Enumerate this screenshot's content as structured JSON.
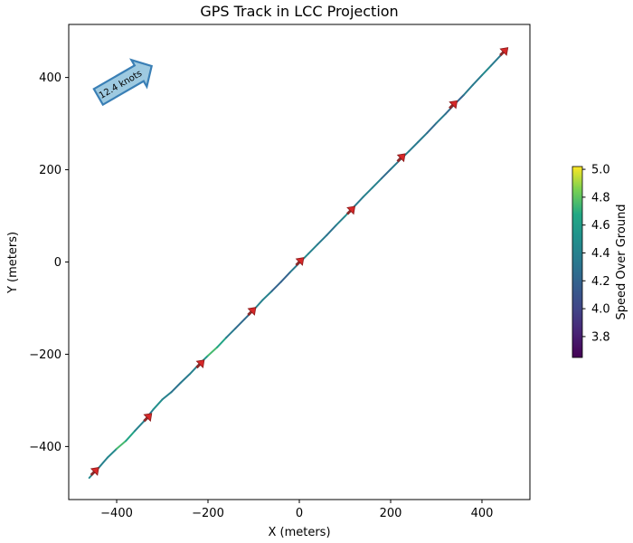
{
  "chart_data": {
    "type": "line",
    "title": "GPS Track in LCC Projection",
    "xlabel": "X (meters)",
    "ylabel": "Y (meters)",
    "xlim": [
      -505,
      505
    ],
    "ylim": [
      -515,
      515
    ],
    "xticks": [
      -400,
      -200,
      0,
      200,
      400
    ],
    "yticks": [
      -400,
      -200,
      0,
      200,
      400
    ],
    "grid": false,
    "line_colormap": "viridis",
    "series": [
      {
        "x": [
          -460,
          -440,
          -420,
          -400,
          -380,
          -360,
          -340,
          -320,
          -300,
          -280,
          -260,
          -240,
          -220,
          -200,
          -180,
          -160,
          -140,
          -120,
          -100,
          -80,
          -60,
          -40,
          -20,
          0,
          20,
          40,
          60,
          80,
          100,
          120,
          140,
          160,
          180,
          200,
          220,
          240,
          260,
          280,
          300,
          320,
          340,
          360,
          380,
          400,
          420,
          440,
          455
        ],
        "y": [
          -468,
          -447,
          -424,
          -405,
          -388,
          -366,
          -345,
          -320,
          -298,
          -282,
          -262,
          -243,
          -222,
          -203,
          -185,
          -164,
          -144,
          -124,
          -104,
          -82,
          -63,
          -43,
          -22,
          -2,
          18,
          38,
          58,
          79,
          99,
          120,
          141,
          161,
          181,
          201,
          221,
          240,
          260,
          280,
          301,
          321,
          342,
          362,
          384,
          405,
          426,
          447,
          462
        ],
        "speed": [
          4.3,
          4.6,
          4.2,
          4.7,
          4.8,
          4.5,
          4.3,
          4.4,
          4.6,
          4.2,
          4.4,
          4.3,
          4.5,
          4.6,
          4.9,
          4.4,
          4.3,
          4.2,
          4.3,
          4.5,
          4.3,
          4.1,
          4.3,
          4.4,
          4.5,
          4.3,
          4.4,
          4.2,
          4.6,
          4.4,
          4.3,
          4.5,
          4.3,
          4.2,
          4.5,
          4.3,
          4.4,
          4.3,
          4.2,
          4.5,
          4.0,
          4.4,
          4.3,
          4.4,
          4.5,
          4.2,
          4.3
        ]
      }
    ],
    "heading_arrows": {
      "color": "#d62728",
      "points": [
        [
          -449,
          -455
        ],
        [
          -333,
          -338
        ],
        [
          -218,
          -222
        ],
        [
          -105,
          -108
        ],
        [
          0,
          0
        ],
        [
          112,
          111
        ],
        [
          222,
          225
        ],
        [
          336,
          340
        ],
        [
          447,
          455
        ]
      ]
    },
    "annotation": {
      "text": "12.4 knots",
      "anchor_x": -440,
      "anchor_y": 358,
      "angle_deg": 30
    },
    "colorbar": {
      "label": "Speed Over Ground",
      "min": 3.65,
      "max": 5.02,
      "ticks": [
        3.8,
        4.0,
        4.2,
        4.4,
        4.6,
        4.8,
        5.0
      ]
    }
  }
}
